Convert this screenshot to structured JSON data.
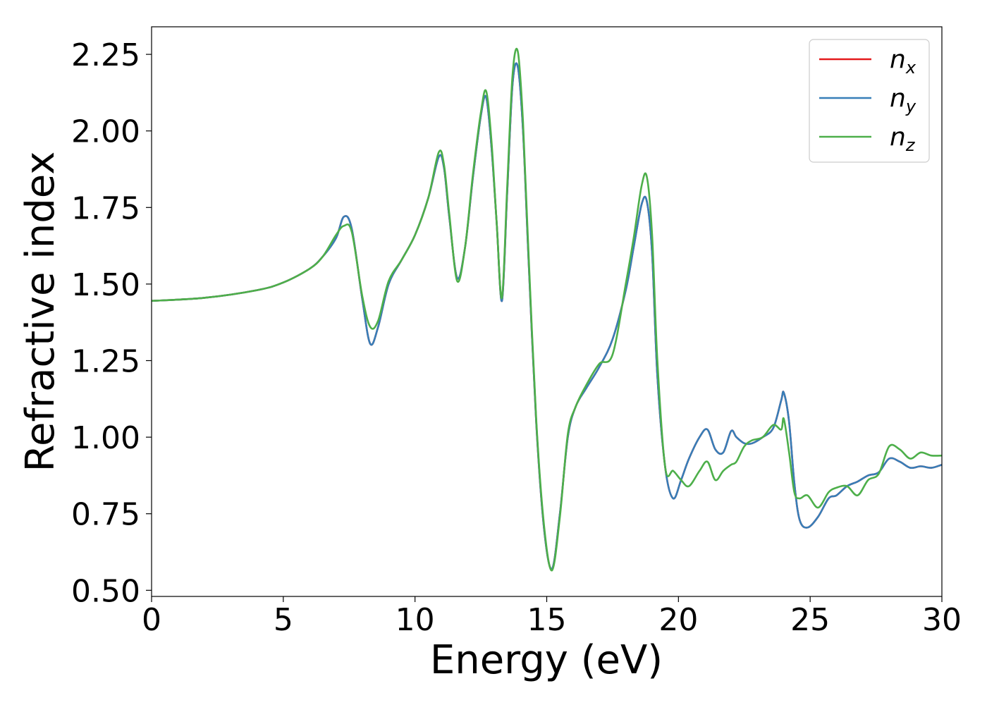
{
  "chart_data": {
    "type": "line",
    "xlabel": "Energy (eV)",
    "ylabel": "Refractive index",
    "xlim": [
      0,
      30
    ],
    "ylim": [
      0.48,
      2.34
    ],
    "xticks": [
      "0",
      "5",
      "10",
      "15",
      "20",
      "25",
      "30"
    ],
    "yticks": [
      "0.50",
      "0.75",
      "1.00",
      "1.25",
      "1.50",
      "1.75",
      "2.00",
      "2.25"
    ],
    "grid": false,
    "legend_position": "top-right",
    "series": [
      {
        "name": "n",
        "subscript": "x",
        "color": "#e41a1c",
        "x": [
          0,
          2,
          4,
          5,
          6,
          6.5,
          7,
          7.3,
          7.6,
          8,
          8.3,
          8.6,
          9,
          9.5,
          10,
          10.5,
          10.9,
          11.1,
          11.3,
          11.6,
          11.9,
          12.2,
          12.5,
          12.7,
          12.9,
          13.1,
          13.3,
          13.5,
          13.7,
          13.9,
          14.1,
          14.3,
          14.6,
          14.9,
          15.2,
          15.5,
          15.8,
          16.1,
          16.5,
          17,
          17.5,
          18,
          18.3,
          18.6,
          18.8,
          19,
          19.2,
          19.5,
          19.8,
          20.1,
          20.4,
          20.8,
          21.1,
          21.4,
          21.7,
          22,
          22.2,
          22.5,
          22.8,
          23.2,
          23.6,
          23.9,
          24,
          24.2,
          24.4,
          24.6,
          24.9,
          25.3,
          25.7,
          26,
          26.4,
          26.8,
          27.2,
          27.6,
          28,
          28.4,
          28.8,
          29.2,
          29.6,
          30
        ],
        "values": [
          1.445,
          1.455,
          1.48,
          1.505,
          1.55,
          1.59,
          1.65,
          1.72,
          1.68,
          1.45,
          1.305,
          1.36,
          1.5,
          1.58,
          1.66,
          1.78,
          1.915,
          1.88,
          1.72,
          1.52,
          1.62,
          1.85,
          2.05,
          2.11,
          1.95,
          1.7,
          1.445,
          1.8,
          2.15,
          2.21,
          2.0,
          1.6,
          1.05,
          0.7,
          0.57,
          0.75,
          1.0,
          1.1,
          1.16,
          1.23,
          1.32,
          1.48,
          1.62,
          1.76,
          1.77,
          1.6,
          1.2,
          0.9,
          0.8,
          0.86,
          0.93,
          1.0,
          1.025,
          0.96,
          0.95,
          1.02,
          1.0,
          0.98,
          0.98,
          1.0,
          1.03,
          1.12,
          1.145,
          1.05,
          0.85,
          0.73,
          0.705,
          0.74,
          0.8,
          0.81,
          0.84,
          0.855,
          0.875,
          0.885,
          0.93,
          0.92,
          0.9,
          0.905,
          0.9,
          0.91
        ]
      },
      {
        "name": "n",
        "subscript": "y",
        "color": "#377eb8",
        "x": [
          0,
          2,
          4,
          5,
          6,
          6.5,
          7,
          7.3,
          7.6,
          8,
          8.3,
          8.6,
          9,
          9.5,
          10,
          10.5,
          10.9,
          11.1,
          11.3,
          11.6,
          11.9,
          12.2,
          12.5,
          12.7,
          12.9,
          13.1,
          13.3,
          13.5,
          13.7,
          13.9,
          14.1,
          14.3,
          14.6,
          14.9,
          15.2,
          15.5,
          15.8,
          16.1,
          16.5,
          17,
          17.5,
          18,
          18.3,
          18.6,
          18.8,
          19,
          19.2,
          19.5,
          19.8,
          20.1,
          20.4,
          20.8,
          21.1,
          21.4,
          21.7,
          22,
          22.2,
          22.5,
          22.8,
          23.2,
          23.6,
          23.9,
          24,
          24.2,
          24.4,
          24.6,
          24.9,
          25.3,
          25.7,
          26,
          26.4,
          26.8,
          27.2,
          27.6,
          28,
          28.4,
          28.8,
          29.2,
          29.6,
          30
        ],
        "values": [
          1.445,
          1.455,
          1.48,
          1.505,
          1.55,
          1.59,
          1.65,
          1.72,
          1.68,
          1.45,
          1.305,
          1.36,
          1.5,
          1.58,
          1.66,
          1.78,
          1.915,
          1.88,
          1.72,
          1.52,
          1.62,
          1.85,
          2.05,
          2.11,
          1.95,
          1.7,
          1.445,
          1.8,
          2.15,
          2.21,
          2.0,
          1.6,
          1.05,
          0.7,
          0.57,
          0.75,
          1.0,
          1.1,
          1.16,
          1.23,
          1.32,
          1.48,
          1.62,
          1.76,
          1.77,
          1.6,
          1.2,
          0.9,
          0.8,
          0.86,
          0.93,
          1.0,
          1.025,
          0.96,
          0.95,
          1.02,
          1.0,
          0.98,
          0.98,
          1.0,
          1.03,
          1.12,
          1.145,
          1.05,
          0.85,
          0.73,
          0.705,
          0.74,
          0.8,
          0.81,
          0.84,
          0.855,
          0.875,
          0.885,
          0.93,
          0.92,
          0.9,
          0.905,
          0.9,
          0.91
        ]
      },
      {
        "name": "n",
        "subscript": "z",
        "color": "#4daf4a",
        "x": [
          0,
          2,
          4,
          5,
          6,
          6.5,
          7,
          7.3,
          7.6,
          8,
          8.3,
          8.6,
          9,
          9.5,
          10,
          10.5,
          10.9,
          11.1,
          11.3,
          11.6,
          11.9,
          12.2,
          12.5,
          12.7,
          12.9,
          13.1,
          13.3,
          13.5,
          13.7,
          13.9,
          14.1,
          14.3,
          14.6,
          14.9,
          15.2,
          15.5,
          15.8,
          16.1,
          16.5,
          17,
          17.5,
          18,
          18.3,
          18.6,
          18.8,
          19,
          19.2,
          19.5,
          19.8,
          20.1,
          20.4,
          20.8,
          21.1,
          21.4,
          21.7,
          22,
          22.2,
          22.5,
          22.8,
          23.2,
          23.6,
          23.9,
          24,
          24.2,
          24.4,
          24.6,
          24.9,
          25.3,
          25.7,
          26,
          26.4,
          26.8,
          27.2,
          27.6,
          28,
          28.4,
          28.8,
          29.2,
          29.6,
          30
        ],
        "values": [
          1.445,
          1.455,
          1.48,
          1.505,
          1.55,
          1.59,
          1.66,
          1.69,
          1.67,
          1.46,
          1.36,
          1.38,
          1.51,
          1.58,
          1.66,
          1.78,
          1.93,
          1.89,
          1.73,
          1.51,
          1.62,
          1.86,
          2.06,
          2.13,
          1.97,
          1.7,
          1.455,
          1.82,
          2.18,
          2.26,
          2.03,
          1.62,
          1.06,
          0.71,
          0.565,
          0.74,
          1.01,
          1.1,
          1.17,
          1.24,
          1.27,
          1.5,
          1.65,
          1.82,
          1.85,
          1.66,
          1.25,
          0.9,
          0.89,
          0.86,
          0.84,
          0.89,
          0.92,
          0.86,
          0.89,
          0.91,
          0.92,
          0.97,
          0.99,
          1.0,
          1.04,
          1.025,
          1.06,
          0.95,
          0.82,
          0.8,
          0.81,
          0.77,
          0.82,
          0.835,
          0.84,
          0.81,
          0.86,
          0.88,
          0.97,
          0.96,
          0.93,
          0.95,
          0.94,
          0.94
        ]
      }
    ]
  }
}
